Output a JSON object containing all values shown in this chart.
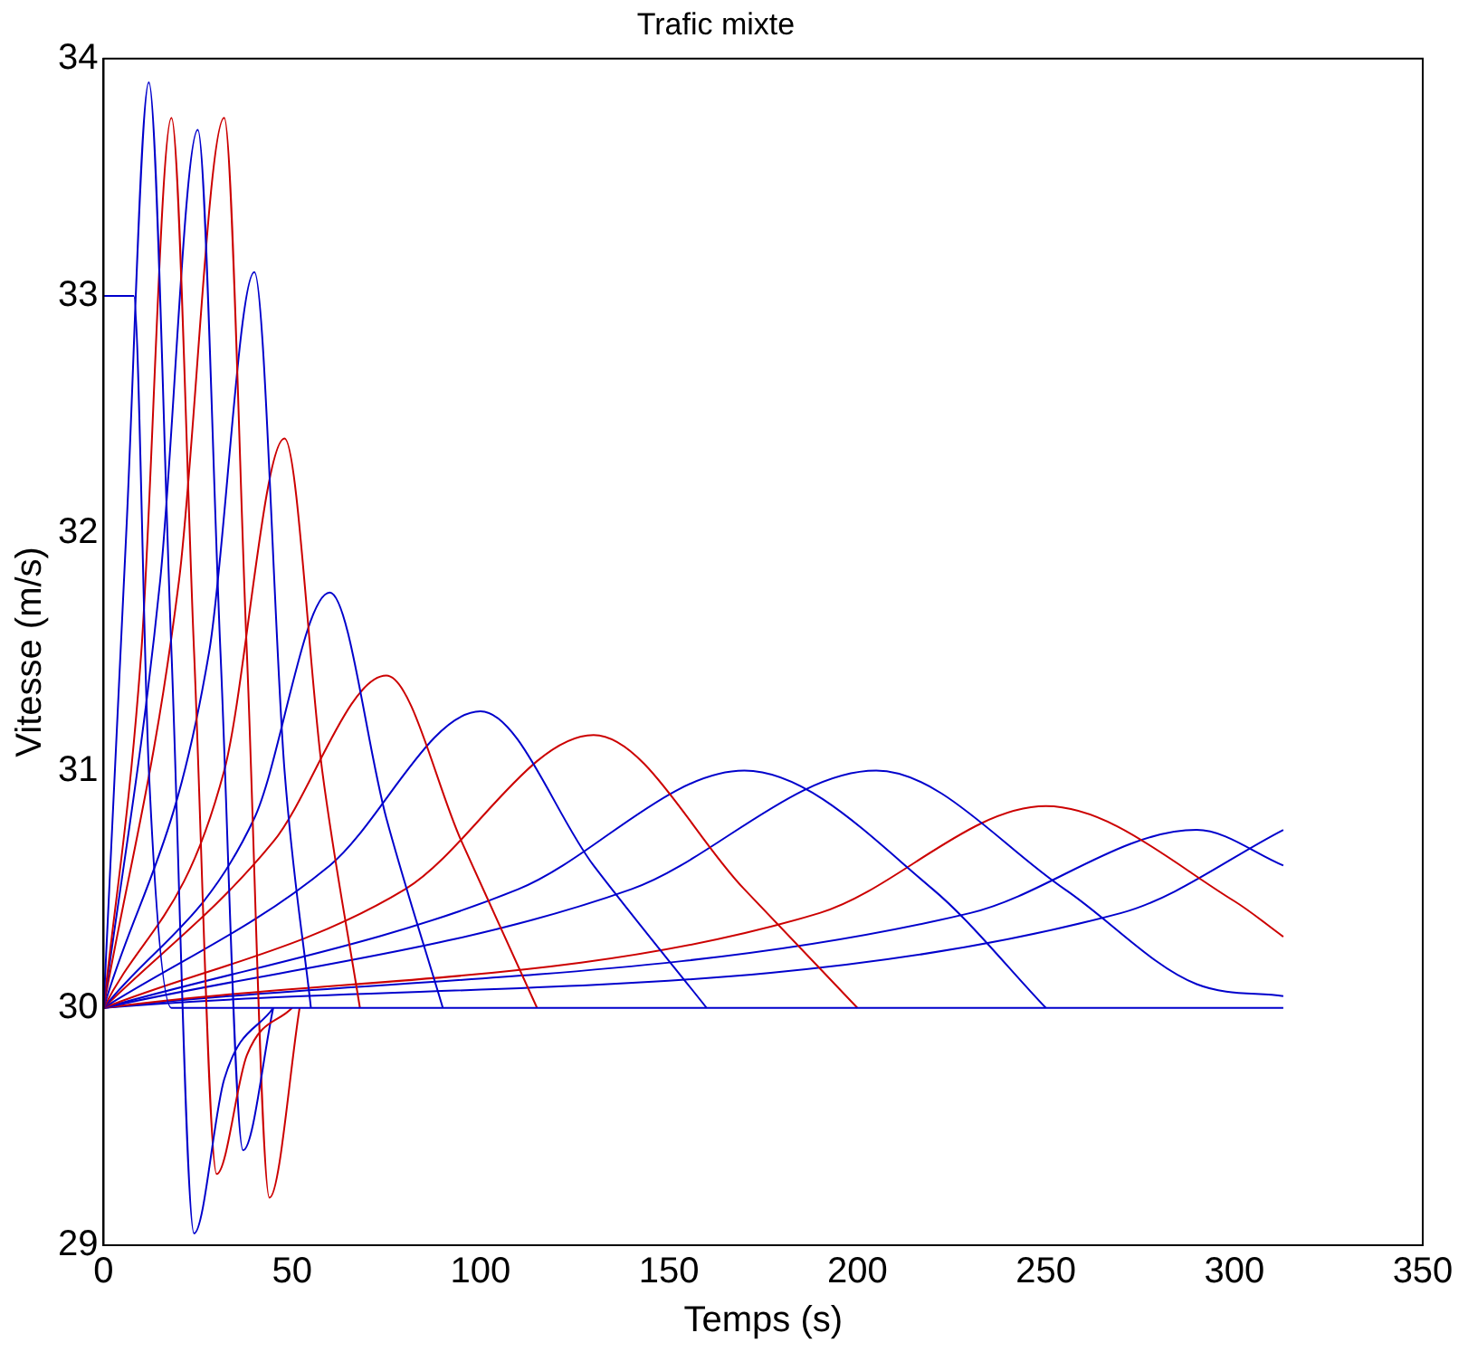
{
  "chart_data": {
    "type": "line",
    "title": "Trafic mixte",
    "xlabel": "Temps (s)",
    "ylabel": "Vitesse (m/s)",
    "xlim": [
      0,
      350
    ],
    "xticks": [
      0,
      50,
      100,
      150,
      200,
      250,
      300,
      350
    ],
    "ylim": [
      29,
      34
    ],
    "yticks": [
      29,
      30,
      31,
      32,
      33,
      34
    ],
    "grid": false,
    "legend": false,
    "marker": "none",
    "line_style": "solid",
    "series": [
      {
        "color": "#0000cc",
        "x": [
          0,
          8,
          12,
          18,
          313
        ],
        "values": [
          33,
          33,
          31,
          30,
          30
        ]
      },
      {
        "color": "#0000cc",
        "x": [
          0,
          6,
          12,
          18,
          24,
          32,
          45
        ],
        "values": [
          30,
          32,
          33.9,
          31.5,
          29.05,
          29.7,
          30
        ]
      },
      {
        "color": "#cc0000",
        "x": [
          0,
          10,
          18,
          24,
          30,
          38,
          50
        ],
        "values": [
          30,
          31.5,
          33.75,
          31.5,
          29.3,
          29.8,
          30
        ]
      },
      {
        "color": "#0000cc",
        "x": [
          0,
          15,
          25,
          31,
          37,
          45
        ],
        "values": [
          30,
          31.8,
          33.7,
          31.5,
          29.4,
          30
        ]
      },
      {
        "color": "#cc0000",
        "x": [
          0,
          20,
          32,
          38,
          44,
          52
        ],
        "values": [
          30,
          31.8,
          33.75,
          31.5,
          29.2,
          30
        ]
      },
      {
        "color": "#0000cc",
        "x": [
          0,
          28,
          40,
          48,
          55
        ],
        "values": [
          30,
          31.5,
          33.1,
          31,
          30
        ]
      },
      {
        "color": "#cc0000",
        "x": [
          0,
          32,
          48,
          58,
          68
        ],
        "values": [
          30,
          31,
          32.4,
          31,
          30
        ]
      },
      {
        "color": "#0000cc",
        "x": [
          0,
          40,
          60,
          75,
          90
        ],
        "values": [
          30,
          30.8,
          31.75,
          30.8,
          30
        ]
      },
      {
        "color": "#cc0000",
        "x": [
          0,
          45,
          75,
          95,
          115
        ],
        "values": [
          30,
          30.7,
          31.4,
          30.7,
          30
        ]
      },
      {
        "color": "#0000cc",
        "x": [
          0,
          60,
          100,
          130,
          160
        ],
        "values": [
          30,
          30.6,
          31.25,
          30.6,
          30
        ]
      },
      {
        "color": "#cc0000",
        "x": [
          0,
          80,
          130,
          170,
          200
        ],
        "values": [
          30,
          30.5,
          31.15,
          30.5,
          30
        ]
      },
      {
        "color": "#0000cc",
        "x": [
          0,
          110,
          170,
          220,
          250
        ],
        "values": [
          30,
          30.5,
          31,
          30.5,
          30
        ]
      },
      {
        "color": "#0000cc",
        "x": [
          0,
          140,
          205,
          255,
          290,
          313
        ],
        "values": [
          30,
          30.5,
          31,
          30.5,
          30.1,
          30.05
        ]
      },
      {
        "color": "#cc0000",
        "x": [
          0,
          190,
          250,
          300,
          313
        ],
        "values": [
          30,
          30.4,
          30.85,
          30.45,
          30.3
        ]
      },
      {
        "color": "#0000cc",
        "x": [
          0,
          230,
          290,
          313
        ],
        "values": [
          30,
          30.4,
          30.75,
          30.6
        ]
      },
      {
        "color": "#0000cc",
        "x": [
          0,
          270,
          313
        ],
        "values": [
          30,
          30.4,
          30.75
        ]
      }
    ]
  }
}
